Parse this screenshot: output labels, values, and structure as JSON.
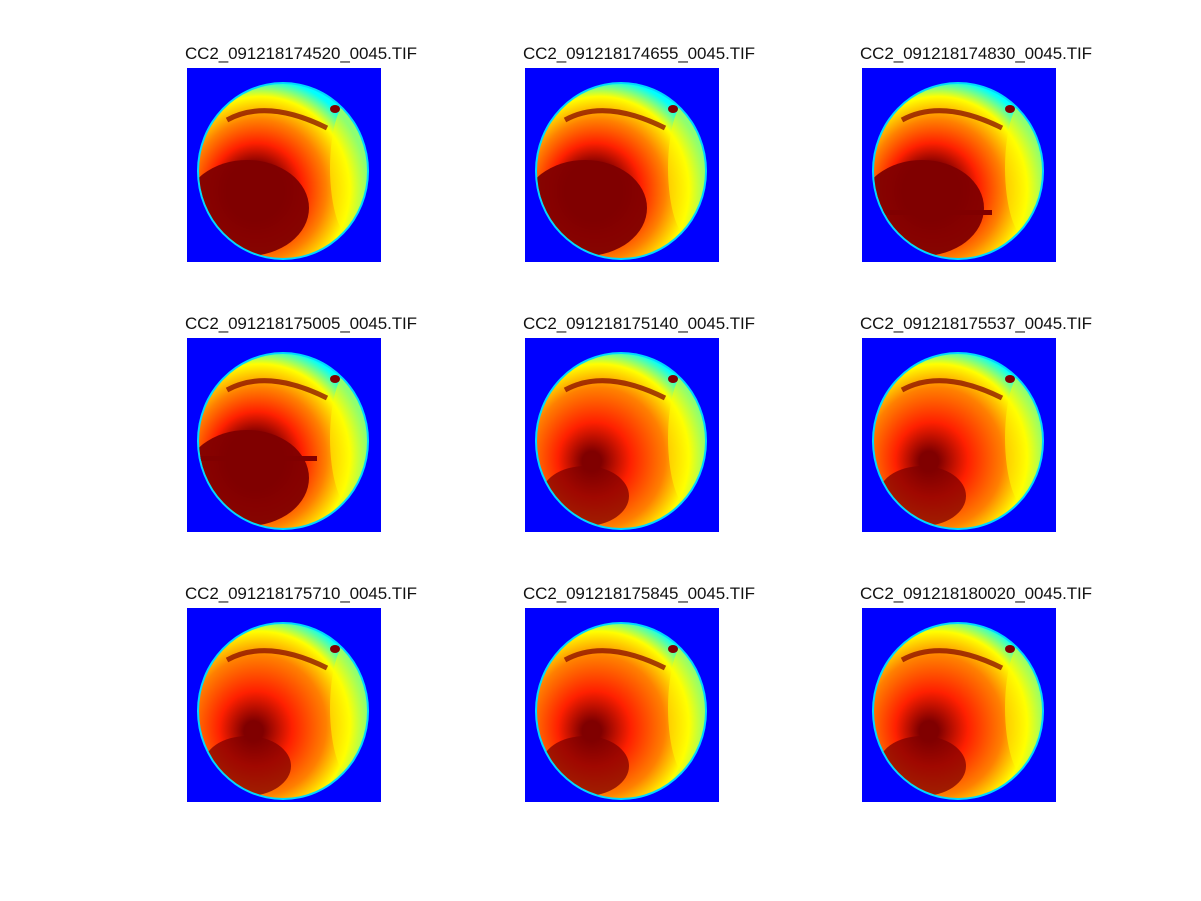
{
  "colors": {
    "background": "#0000ff",
    "cold": "#00ffff",
    "mid": "#ffff00",
    "warm": "#ff8000",
    "hot": "#ff2000",
    "max": "#800000"
  },
  "panels": [
    {
      "title": "CC2_091218174520_0045.TIF",
      "band": false
    },
    {
      "title": "CC2_091218174655_0045.TIF",
      "band": false
    },
    {
      "title": "CC2_091218174830_0045.TIF",
      "band": true
    },
    {
      "title": "CC2_091218175005_0045.TIF",
      "band": true
    },
    {
      "title": "CC2_091218175140_0045.TIF",
      "band": false
    },
    {
      "title": "CC2_091218175537_0045.TIF",
      "band": false
    },
    {
      "title": "CC2_091218175710_0045.TIF",
      "band": false
    },
    {
      "title": "CC2_091218175845_0045.TIF",
      "band": false
    },
    {
      "title": "CC2_091218180020_0045.TIF",
      "band": false
    }
  ]
}
